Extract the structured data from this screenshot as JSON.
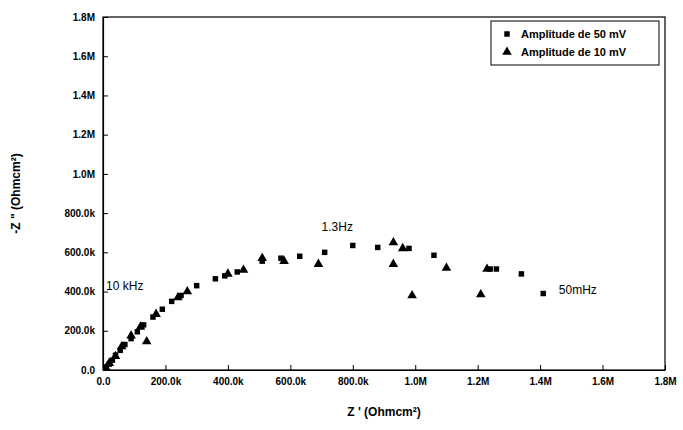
{
  "chart_data": {
    "type": "scatter",
    "x_label": "Z ' (Ohmcm²)",
    "y_label": "-Z \" (Ohmcm²)",
    "xlim": [
      0,
      1800000
    ],
    "ylim": [
      0,
      1800000
    ],
    "xticks": [
      {
        "value": 0,
        "label": "0.0"
      },
      {
        "value": 200000,
        "label": "200.0k"
      },
      {
        "value": 400000,
        "label": "400.0k"
      },
      {
        "value": 600000,
        "label": "600.0k"
      },
      {
        "value": 800000,
        "label": "800.0k"
      },
      {
        "value": 1000000,
        "label": "1.0M"
      },
      {
        "value": 1200000,
        "label": "1.2M"
      },
      {
        "value": 1400000,
        "label": "1.4M"
      },
      {
        "value": 1600000,
        "label": "1.6M"
      },
      {
        "value": 1800000,
        "label": "1.8M"
      }
    ],
    "yticks": [
      {
        "value": 0,
        "label": "0.0"
      },
      {
        "value": 200000,
        "label": "200.0k"
      },
      {
        "value": 400000,
        "label": "400.0k"
      },
      {
        "value": 600000,
        "label": "600.0k"
      },
      {
        "value": 800000,
        "label": "800.0k"
      },
      {
        "value": 1000000,
        "label": "1.0M"
      },
      {
        "value": 1200000,
        "label": "1.2M"
      },
      {
        "value": 1400000,
        "label": "1.4M"
      },
      {
        "value": 1600000,
        "label": "1.6M"
      },
      {
        "value": 1800000,
        "label": "1.8M"
      }
    ],
    "legend": "top-right",
    "series": [
      {
        "name": "Amplitude de 50 mV",
        "color": "#000000",
        "marker": "square",
        "x": [
          5000,
          10000,
          20000,
          30000,
          40000,
          55000,
          70000,
          90000,
          110000,
          130000,
          160000,
          190000,
          220000,
          250000,
          300000,
          360000,
          390000,
          430000,
          510000,
          570000,
          630000,
          710000,
          800000,
          880000,
          980000,
          1060000,
          1240000,
          1260000,
          1340000,
          1410000
        ],
        "values": [
          5000,
          15000,
          30000,
          50000,
          75000,
          100000,
          130000,
          160000,
          195000,
          230000,
          270000,
          310000,
          350000,
          380000,
          430000,
          465000,
          480000,
          500000,
          555000,
          570000,
          580000,
          600000,
          635000,
          625000,
          620000,
          585000,
          515000,
          515000,
          490000,
          390000
        ]
      },
      {
        "name": "Amplitude de 10 mV",
        "color": "#000000",
        "marker": "triangle",
        "x": [
          10000,
          20000,
          40000,
          60000,
          90000,
          120000,
          140000,
          170000,
          240000,
          270000,
          400000,
          450000,
          510000,
          580000,
          690000,
          930000,
          930000,
          960000,
          990000,
          1100000,
          1210000,
          1230000
        ],
        "values": [
          10000,
          35000,
          70000,
          120000,
          175000,
          220000,
          145000,
          285000,
          370000,
          400000,
          490000,
          510000,
          570000,
          555000,
          540000,
          650000,
          540000,
          620000,
          380000,
          520000,
          385000,
          515000
        ]
      }
    ],
    "annotations": [
      {
        "text": "10 kHz",
        "x": 10000,
        "y": 410000
      },
      {
        "text": "1.3Hz",
        "x": 700000,
        "y": 710000
      },
      {
        "text": "50mHz",
        "x": 1460000,
        "y": 390000
      }
    ]
  }
}
